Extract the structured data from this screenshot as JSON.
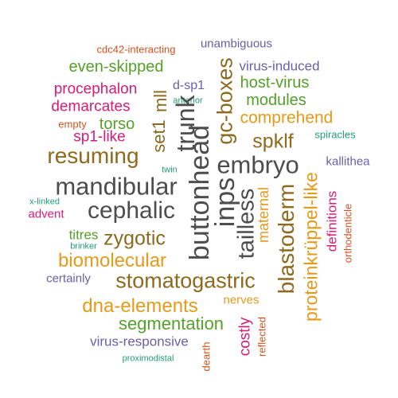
{
  "colors": {
    "gray": "#4d4d4d",
    "brown": "#8c6a1e",
    "green": "#55a02a",
    "orange": "#e69a1a",
    "pink": "#d81b78",
    "purple": "#6a5fa5",
    "teal": "#1f9e77",
    "red": "#d2531e"
  },
  "words": [
    {
      "text": "unambiguous",
      "color": "purple"
    },
    {
      "text": "cdc42-interacting",
      "color": "red"
    },
    {
      "text": "even-skipped",
      "color": "green"
    },
    {
      "text": "virus-induced",
      "color": "purple"
    },
    {
      "text": "procephalon",
      "color": "pink"
    },
    {
      "text": "d-sp1",
      "color": "purple"
    },
    {
      "text": "host-virus",
      "color": "green"
    },
    {
      "text": "demarcates",
      "color": "pink"
    },
    {
      "text": "anterior",
      "color": "teal"
    },
    {
      "text": "modules",
      "color": "green"
    },
    {
      "text": "mll",
      "color": "brown"
    },
    {
      "text": "gc-boxes",
      "color": "brown"
    },
    {
      "text": "comprehend",
      "color": "orange"
    },
    {
      "text": "empty",
      "color": "red"
    },
    {
      "text": "torso",
      "color": "green"
    },
    {
      "text": "spiracles",
      "color": "teal"
    },
    {
      "text": "sp1-like",
      "color": "pink"
    },
    {
      "text": "trunk",
      "color": "gray"
    },
    {
      "text": "spklf",
      "color": "brown"
    },
    {
      "text": "set1",
      "color": "brown"
    },
    {
      "text": "resuming",
      "color": "brown"
    },
    {
      "text": "embryo",
      "color": "gray"
    },
    {
      "text": "kallithea",
      "color": "purple"
    },
    {
      "text": "buttonhead",
      "color": "gray"
    },
    {
      "text": "twin",
      "color": "teal"
    },
    {
      "text": "proteinkrüppel-like",
      "color": "orange"
    },
    {
      "text": "mandibular",
      "color": "gray"
    },
    {
      "text": "inps",
      "color": "gray"
    },
    {
      "text": "maternal",
      "color": "orange"
    },
    {
      "text": "definitions",
      "color": "pink"
    },
    {
      "text": "orthodenticle",
      "color": "red"
    },
    {
      "text": "x-linked",
      "color": "teal"
    },
    {
      "text": "cephalic",
      "color": "gray"
    },
    {
      "text": "tailless",
      "color": "gray"
    },
    {
      "text": "blastoderm",
      "color": "brown"
    },
    {
      "text": "advent",
      "color": "pink"
    },
    {
      "text": "titres",
      "color": "green"
    },
    {
      "text": "zygotic",
      "color": "brown"
    },
    {
      "text": "brinker",
      "color": "teal"
    },
    {
      "text": "biomolecular",
      "color": "orange"
    },
    {
      "text": "certainly",
      "color": "purple"
    },
    {
      "text": "stomatogastric",
      "color": "brown"
    },
    {
      "text": "dna-elements",
      "color": "orange"
    },
    {
      "text": "nerves",
      "color": "orange"
    },
    {
      "text": "segmentation",
      "color": "green"
    },
    {
      "text": "costly",
      "color": "pink"
    },
    {
      "text": "reflected",
      "color": "red"
    },
    {
      "text": "virus-responsive",
      "color": "purple"
    },
    {
      "text": "dearth",
      "color": "red"
    },
    {
      "text": "proximodistal",
      "color": "teal"
    }
  ]
}
